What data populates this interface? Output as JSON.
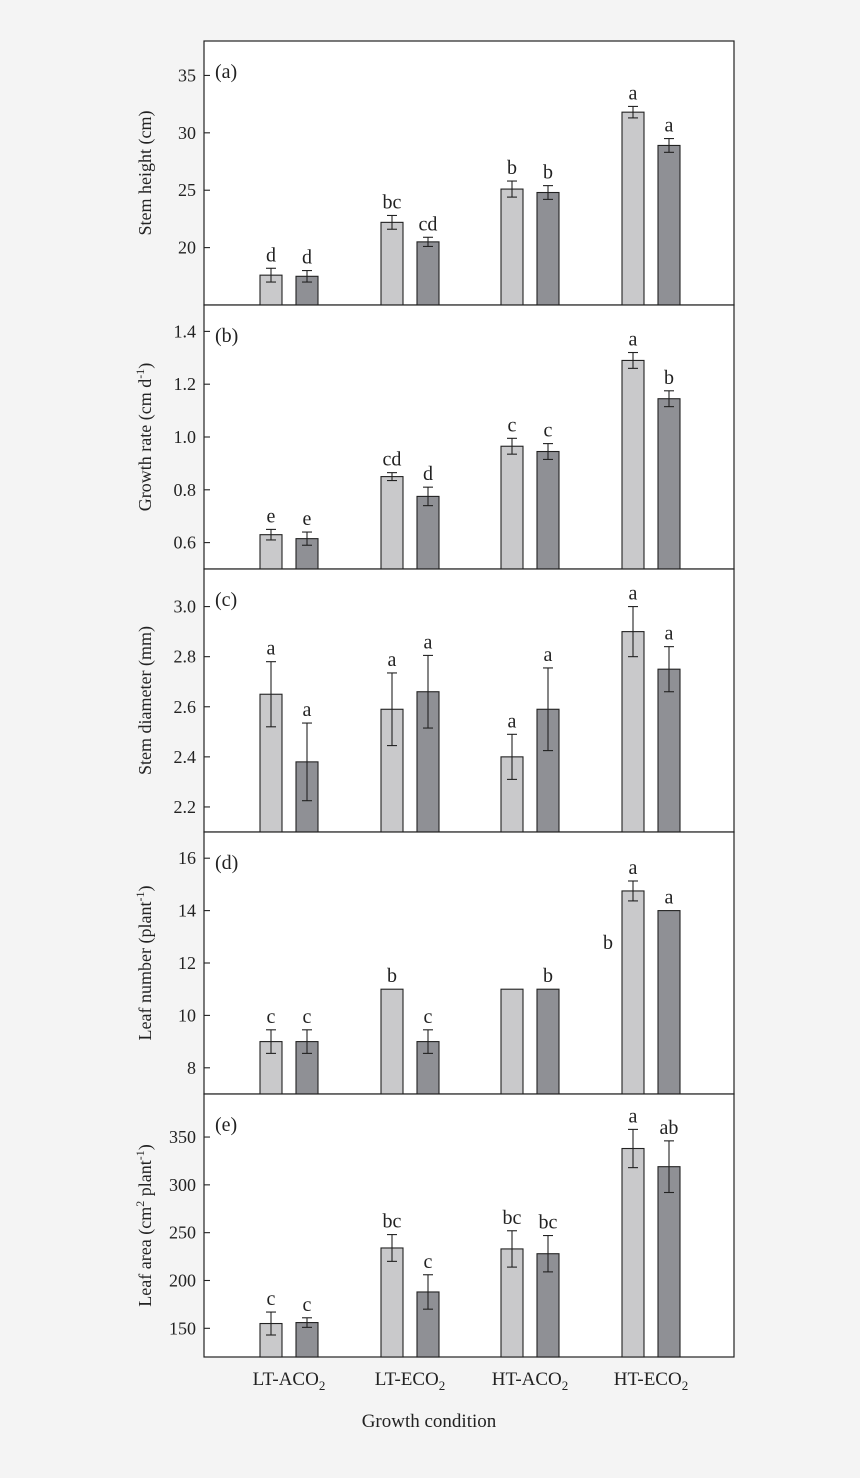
{
  "figure": {
    "categories": [
      "LT-ACO",
      "LT-ECO",
      "HT-ACO",
      "HT-ECO"
    ],
    "category_subscript": "2",
    "xlabel": "Growth condition",
    "colors": {
      "bar_light": "#c9c9cb",
      "bar_dark": "#8f9095",
      "panel_fill": "#ffffff",
      "stroke": "#222222",
      "page_bg": "#f4f4f4"
    }
  },
  "chart_data": [
    {
      "type": "bar",
      "panel_label": "(a)",
      "ylabel": [
        "Stem height (cm)"
      ],
      "ylim": [
        15.0,
        38.0
      ],
      "yticks": [
        20,
        25,
        30,
        35
      ],
      "ytick_labels": [
        "20",
        "25",
        "30",
        "35"
      ],
      "series": [
        {
          "values": [
            17.6,
            22.2,
            25.1,
            31.8
          ],
          "errors": [
            0.6,
            0.6,
            0.7,
            0.5
          ],
          "letters": [
            "d",
            "bc",
            "b",
            "a"
          ]
        },
        {
          "values": [
            17.5,
            20.5,
            24.8,
            28.9
          ],
          "errors": [
            0.5,
            0.4,
            0.6,
            0.6
          ],
          "letters": [
            "d",
            "cd",
            "b",
            "a"
          ]
        }
      ]
    },
    {
      "type": "bar",
      "panel_label": "(b)",
      "ylabel": [
        "Growth rate (cm d",
        "-1",
        ")"
      ],
      "ylim": [
        0.5,
        1.5
      ],
      "yticks": [
        0.6,
        0.8,
        1.0,
        1.2,
        1.4
      ],
      "ytick_labels": [
        "0.6",
        "0.8",
        "1.0",
        "1.2",
        "1.4"
      ],
      "series": [
        {
          "values": [
            0.63,
            0.85,
            0.965,
            1.29
          ],
          "errors": [
            0.02,
            0.015,
            0.03,
            0.03
          ],
          "letters": [
            "e",
            "cd",
            "c",
            "a"
          ]
        },
        {
          "values": [
            0.615,
            0.775,
            0.945,
            1.145
          ],
          "errors": [
            0.025,
            0.035,
            0.03,
            0.03
          ],
          "letters": [
            "e",
            "d",
            "c",
            "b"
          ]
        }
      ]
    },
    {
      "type": "bar",
      "panel_label": "(c)",
      "ylabel": [
        "Stem diameter (mm)"
      ],
      "ylim": [
        2.1,
        3.15
      ],
      "yticks": [
        2.2,
        2.4,
        2.6,
        2.8,
        3.0
      ],
      "ytick_labels": [
        "2.2",
        "2.4",
        "2.6",
        "2.8",
        "3.0"
      ],
      "series": [
        {
          "values": [
            2.65,
            2.59,
            2.4,
            2.9
          ],
          "errors": [
            0.13,
            0.145,
            0.09,
            0.1
          ],
          "letters": [
            "a",
            "a",
            "a",
            "a"
          ]
        },
        {
          "values": [
            2.38,
            2.66,
            2.59,
            2.75
          ],
          "errors": [
            0.155,
            0.145,
            0.165,
            0.09
          ],
          "letters": [
            "a",
            "a",
            "a",
            "a"
          ]
        }
      ]
    },
    {
      "type": "bar",
      "panel_label": "(d)",
      "ylabel": [
        "Leaf number (plant",
        "-1",
        ")"
      ],
      "ylim": [
        7.0,
        17.0
      ],
      "yticks": [
        8,
        10,
        12,
        14,
        16
      ],
      "ytick_labels": [
        "8",
        "10",
        "12",
        "14",
        "16"
      ],
      "series": [
        {
          "values": [
            9.0,
            11.0,
            11.0,
            14.75
          ],
          "errors": [
            0.45,
            null,
            null,
            0.38
          ],
          "letters": [
            "c",
            "b",
            "",
            "a"
          ]
        },
        {
          "values": [
            9.0,
            9.0,
            11.0,
            14.0
          ],
          "errors": [
            0.45,
            0.45,
            null,
            null
          ],
          "letters": [
            "c",
            "c",
            "b",
            "a"
          ]
        }
      ],
      "extra_letters": [
        {
          "text": "b",
          "x": 10.94,
          "y": 12.8
        }
      ]
    },
    {
      "type": "bar",
      "panel_label": "(e)",
      "ylabel": [
        "Leaf area (cm",
        "2",
        " plant",
        "-1",
        ")"
      ],
      "ylim": [
        120,
        395
      ],
      "yticks": [
        150,
        200,
        250,
        300,
        350
      ],
      "ytick_labels": [
        "150",
        "200",
        "250",
        "300",
        "350"
      ],
      "series": [
        {
          "values": [
            155,
            234,
            233,
            338
          ],
          "errors": [
            12,
            14,
            19,
            20
          ],
          "letters": [
            "c",
            "bc",
            "bc",
            "a"
          ]
        },
        {
          "values": [
            156,
            188,
            228,
            319
          ],
          "errors": [
            5,
            18,
            19,
            27
          ],
          "letters": [
            "c",
            "c",
            "bc",
            "ab"
          ]
        }
      ]
    }
  ]
}
